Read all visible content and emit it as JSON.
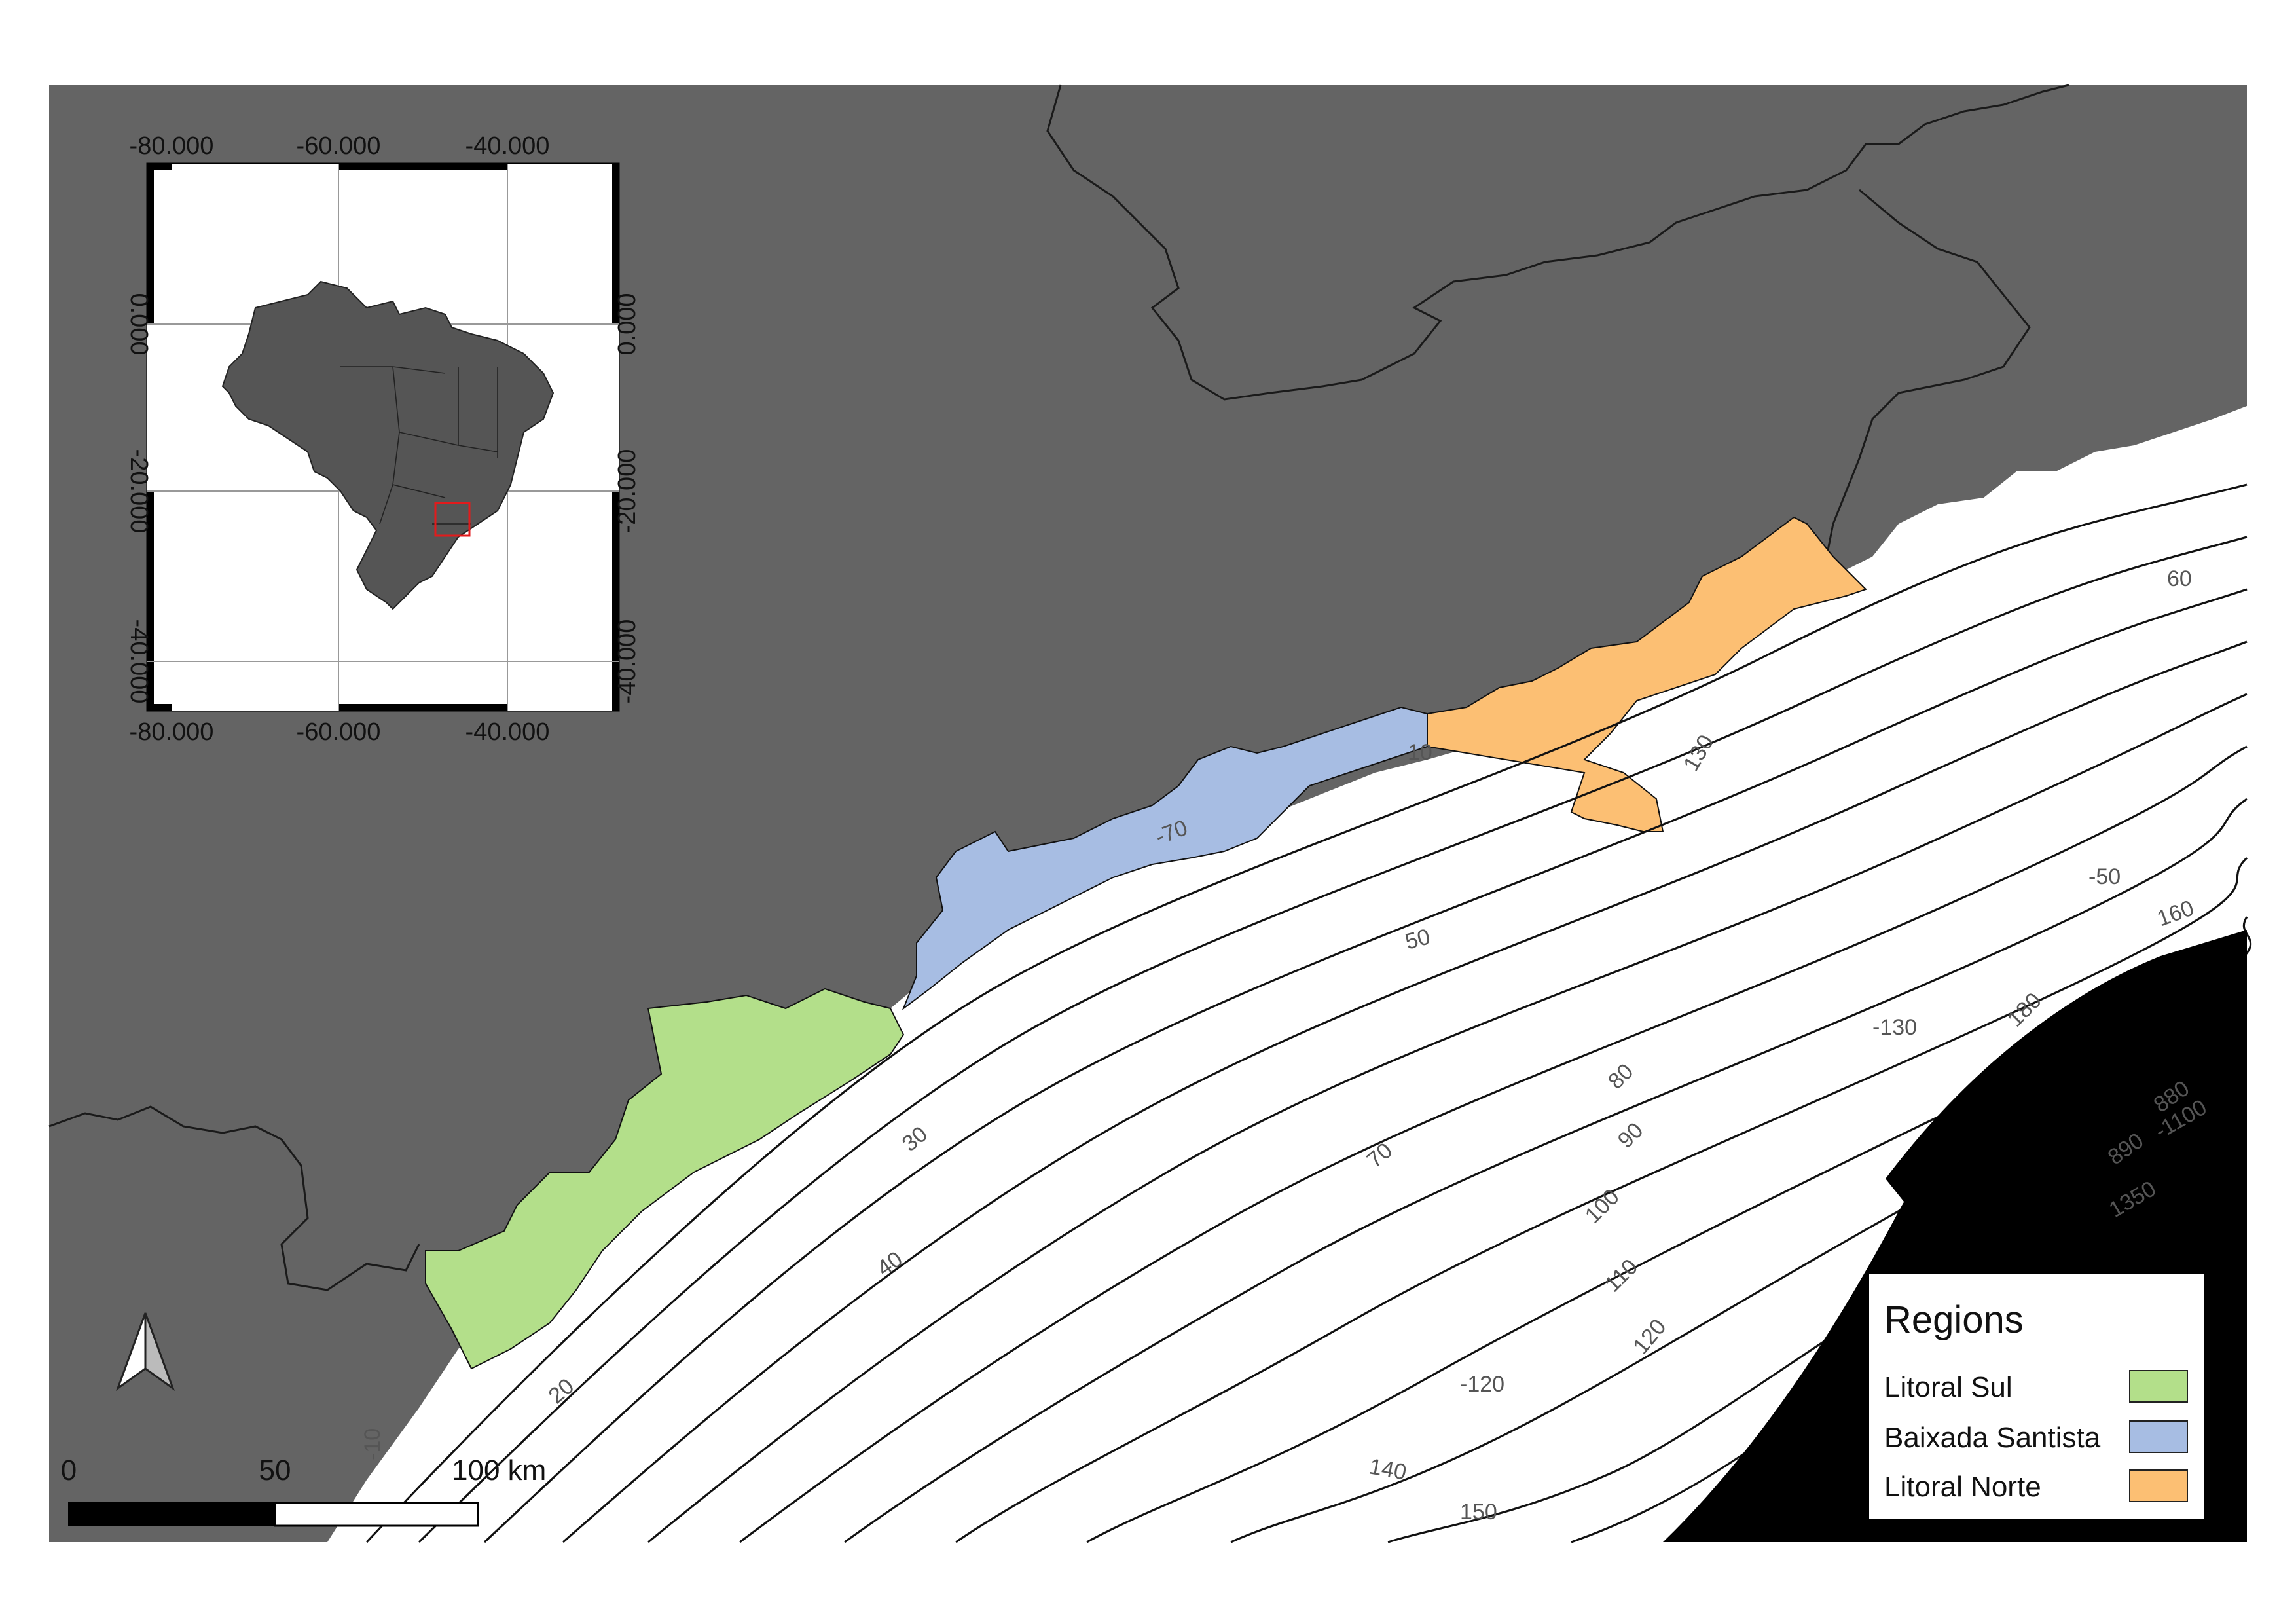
{
  "colors": {
    "land": "#646464",
    "ocean": "#ffffff",
    "litoral_sul": "#b3df8a",
    "baixada_santista": "#a7bde3",
    "litoral_norte": "#fcbf73",
    "deep_contours": "#000000",
    "inset_focus_box": "#e31a1c"
  },
  "legend": {
    "title": "Regions",
    "items": [
      {
        "label": "Litoral Sul",
        "color": "#b3df8a"
      },
      {
        "label": "Baixada Santista",
        "color": "#a7bde3"
      },
      {
        "label": "Litoral Norte",
        "color": "#fcbf73"
      }
    ]
  },
  "scale_bar": {
    "ticks": [
      "0",
      "50",
      "100 km"
    ]
  },
  "north_arrow": {
    "icon": "north-arrow-icon"
  },
  "inset": {
    "x_ticks_top": [
      "-80.000",
      "-60.000",
      "-40.000"
    ],
    "x_ticks_bottom": [
      "-80.000",
      "-60.000",
      "-40.000"
    ],
    "y_ticks_left": [
      "0.000",
      "-20.000",
      "-40.000"
    ],
    "y_ticks_right": [
      "0.000",
      "-20.000",
      "-40.000"
    ]
  },
  "contour_labels": [
    "10",
    "20",
    "30",
    "40",
    "50",
    "60",
    "70",
    "80",
    "90",
    "100",
    "110",
    "120",
    "130",
    "140",
    "150",
    "160",
    "180",
    "880",
    "890",
    "1350",
    "1460",
    "-10",
    "-50",
    "-70",
    "-120",
    "-130",
    "-1100"
  ]
}
